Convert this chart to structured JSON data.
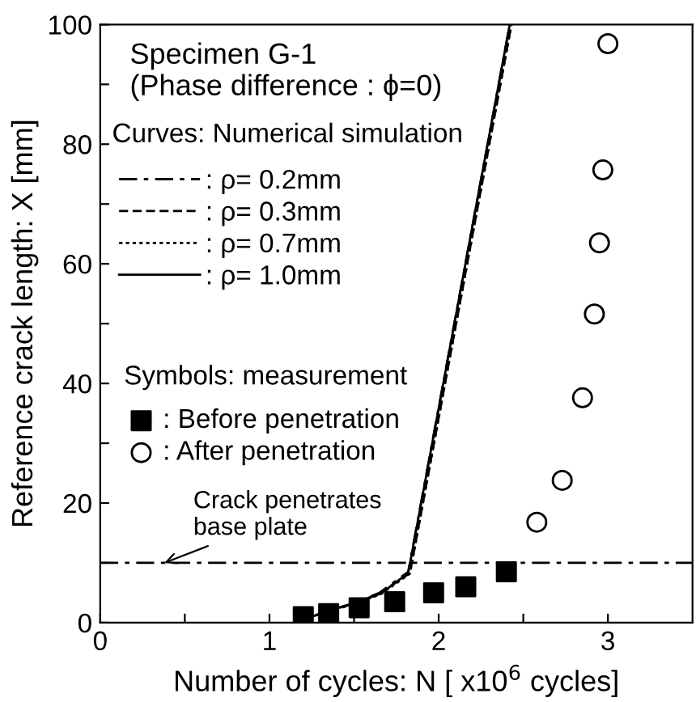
{
  "chart_data": {
    "type": "line",
    "title": "Specimen G-1\n(Phase difference : ϕ=0)",
    "xlabel": "Number of cycles: N [ x10$^{6}$ cycles]",
    "ylabel": "Reference crack length: X [mm]",
    "xlim": [
      0,
      3.5
    ],
    "ylim": [
      0,
      100
    ],
    "xticks": [
      0,
      {
        "value": 0.5,
        "label": null
      },
      1,
      {
        "value": 1.5,
        "label": null
      },
      2,
      {
        "value": 2.5,
        "label": null
      },
      3
    ],
    "yticks": [
      0,
      {
        "value": 10,
        "label": null
      },
      20,
      {
        "value": 30,
        "label": null
      },
      40,
      {
        "value": 50,
        "label": null
      },
      60,
      {
        "value": 70,
        "label": null
      },
      80,
      {
        "value": 90,
        "label": null
      },
      100
    ],
    "grid": false,
    "legend": "left",
    "series": [
      {
        "name": ": ρ= 0.2mm",
        "line_style": "dashdot",
        "color": "#000000",
        "x": [
          1.2,
          1.35,
          1.5,
          1.65,
          1.82,
          2.42
        ],
        "values": [
          0.5,
          2,
          3.3,
          5,
          8.5,
          100
        ]
      },
      {
        "name": ": ρ= 0.3mm",
        "line_style": "dashed",
        "color": "#000000",
        "x": [
          1.2,
          1.35,
          1.5,
          1.65,
          1.83,
          2.43
        ],
        "values": [
          0.5,
          2,
          3.2,
          4.9,
          8.3,
          100
        ]
      },
      {
        "name": ": ρ= 0.7mm",
        "line_style": "dotted",
        "color": "#000000",
        "x": [
          1.2,
          1.35,
          1.5,
          1.66,
          1.83,
          2.43
        ],
        "values": [
          0.5,
          1.9,
          3.1,
          4.8,
          8.2,
          100
        ]
      },
      {
        "name": ": ρ= 1.0mm",
        "line_style": "solid",
        "color": "#000000",
        "x": [
          1.2,
          1.35,
          1.5,
          1.66,
          1.82,
          2.42
        ],
        "values": [
          0.5,
          2,
          3.2,
          4.9,
          8.3,
          100
        ]
      },
      {
        "name": ": Before penetration",
        "type": "scatter",
        "marker": "square",
        "color": "#000000",
        "x": [
          1.2,
          1.35,
          1.53,
          1.74,
          1.97,
          2.16,
          2.4
        ],
        "values": [
          1,
          1.5,
          2.5,
          3.5,
          5,
          6,
          8.5
        ]
      },
      {
        "name": ": After penetration",
        "type": "scatter",
        "marker": "open circle",
        "color": "#000000",
        "x": [
          2.58,
          2.73,
          2.85,
          2.92,
          2.95,
          2.97,
          3.0
        ],
        "values": [
          16.8,
          23.8,
          37.6,
          51.6,
          63.5,
          75.7,
          96.8
        ]
      }
    ],
    "ref_lines": [
      {
        "axis": "y",
        "value": 10,
        "line_style": "dashdot",
        "color": "#000000"
      }
    ],
    "annotations": [
      "Curves: Numerical simulation",
      "Symbols: measurement",
      {
        "text": "Crack penetrates\nbase plate",
        "x": 0.38,
        "y": 10
      }
    ]
  }
}
